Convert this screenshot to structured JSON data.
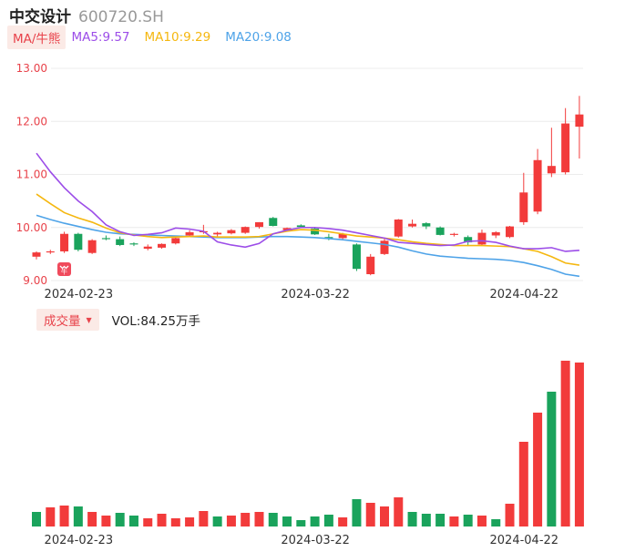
{
  "header": {
    "name": "中交设计",
    "code": "600720.SH"
  },
  "ma_legend": {
    "tag": "MA/牛熊",
    "ma5": "MA5:9.57",
    "ma10": "MA10:9.29",
    "ma20": "MA20:9.08"
  },
  "volume_legend": {
    "tag": "成交量",
    "value": "VOL:84.25万手"
  },
  "colors": {
    "up": "#f23b3b",
    "down": "#1aa35c",
    "ma5": "#9c4de8",
    "ma10": "#f5b70f",
    "ma20": "#4ea3e8",
    "axis_text": "#e8424a",
    "date_text": "#333333"
  },
  "chart_data": [
    {
      "type": "candlestick",
      "title": "",
      "y_ticks": [
        "13.00",
        "12.00",
        "11.00",
        "10.00",
        "9.00"
      ],
      "ylim": [
        9.0,
        13.0
      ],
      "x_tick_labels": [
        {
          "index": 3,
          "label": "2024-02-23"
        },
        {
          "index": 20,
          "label": "2024-03-22"
        },
        {
          "index": 35,
          "label": "2024-04-22"
        }
      ],
      "grid": true,
      "ohlc": [
        [
          9.45,
          9.55,
          9.4,
          9.53
        ],
        [
          9.53,
          9.58,
          9.5,
          9.55
        ],
        [
          9.55,
          9.92,
          9.52,
          9.88
        ],
        [
          9.88,
          9.9,
          9.55,
          9.58
        ],
        [
          9.52,
          9.78,
          9.5,
          9.76
        ],
        [
          9.8,
          9.85,
          9.76,
          9.78
        ],
        [
          9.78,
          9.83,
          9.65,
          9.67
        ],
        [
          9.7,
          9.72,
          9.65,
          9.68
        ],
        [
          9.6,
          9.68,
          9.57,
          9.64
        ],
        [
          9.62,
          9.7,
          9.6,
          9.69
        ],
        [
          9.7,
          9.82,
          9.68,
          9.8
        ],
        [
          9.85,
          9.95,
          9.82,
          9.91
        ],
        [
          9.91,
          10.05,
          9.88,
          9.93
        ],
        [
          9.87,
          9.92,
          9.83,
          9.9
        ],
        [
          9.89,
          9.97,
          9.87,
          9.95
        ],
        [
          9.9,
          10.02,
          9.88,
          10.01
        ],
        [
          10.01,
          10.1,
          9.98,
          10.1
        ],
        [
          10.18,
          10.2,
          10.02,
          10.03
        ],
        [
          9.95,
          10.0,
          9.93,
          9.99
        ],
        [
          10.04,
          10.06,
          10.0,
          10.01
        ],
        [
          9.98,
          10.0,
          9.86,
          9.87
        ],
        [
          9.82,
          9.88,
          9.76,
          9.8
        ],
        [
          9.8,
          9.9,
          9.76,
          9.88
        ],
        [
          9.68,
          9.7,
          9.18,
          9.22
        ],
        [
          9.12,
          9.5,
          9.1,
          9.45
        ],
        [
          9.5,
          9.8,
          9.48,
          9.75
        ],
        [
          9.83,
          10.16,
          9.81,
          10.15
        ],
        [
          10.02,
          10.15,
          10.0,
          10.07
        ],
        [
          10.08,
          10.1,
          9.97,
          10.02
        ],
        [
          10.0,
          10.02,
          9.85,
          9.86
        ],
        [
          9.86,
          9.9,
          9.83,
          9.88
        ],
        [
          9.82,
          9.85,
          9.65,
          9.72
        ],
        [
          9.68,
          9.96,
          9.65,
          9.9
        ],
        [
          9.85,
          9.93,
          9.8,
          9.91
        ],
        [
          9.82,
          10.03,
          9.8,
          10.02
        ],
        [
          10.1,
          11.03,
          10.05,
          10.66
        ],
        [
          10.3,
          11.48,
          10.25,
          11.27
        ],
        [
          11.02,
          11.88,
          10.95,
          11.16
        ],
        [
          11.04,
          12.25,
          11.0,
          11.96
        ],
        [
          11.9,
          12.48,
          11.3,
          12.13
        ]
      ],
      "ma5": [
        11.4,
        11.05,
        10.75,
        10.5,
        10.3,
        10.05,
        9.92,
        9.85,
        9.87,
        9.9,
        9.99,
        9.97,
        9.93,
        9.73,
        9.67,
        9.63,
        9.7,
        9.88,
        9.95,
        10.0,
        10.0,
        9.98,
        9.95,
        9.9,
        9.85,
        9.8,
        9.72,
        9.7,
        9.68,
        9.66,
        9.67,
        9.74,
        9.75,
        9.72,
        9.65,
        9.6,
        9.6,
        9.62,
        9.55,
        9.57
      ],
      "ma10": [
        10.63,
        10.45,
        10.28,
        10.18,
        10.1,
        9.99,
        9.9,
        9.86,
        9.83,
        9.81,
        9.82,
        9.83,
        9.84,
        9.82,
        9.82,
        9.82,
        9.83,
        9.88,
        9.93,
        9.96,
        9.95,
        9.92,
        9.88,
        9.84,
        9.82,
        9.8,
        9.77,
        9.73,
        9.7,
        9.68,
        9.66,
        9.66,
        9.66,
        9.65,
        9.64,
        9.6,
        9.55,
        9.45,
        9.33,
        9.29
      ],
      "ma20": [
        10.23,
        10.15,
        10.08,
        10.02,
        9.96,
        9.91,
        9.88,
        9.87,
        9.86,
        9.85,
        9.84,
        9.83,
        9.82,
        9.81,
        9.81,
        9.81,
        9.82,
        9.83,
        9.83,
        9.82,
        9.81,
        9.79,
        9.77,
        9.74,
        9.71,
        9.68,
        9.63,
        9.56,
        9.5,
        9.46,
        9.44,
        9.42,
        9.41,
        9.4,
        9.38,
        9.34,
        9.28,
        9.21,
        9.12,
        9.08
      ]
    },
    {
      "type": "bar",
      "title": "",
      "series_label": "VOL",
      "x_tick_labels": [
        {
          "index": 3,
          "label": "2024-02-23"
        },
        {
          "index": 20,
          "label": "2024-03-22"
        },
        {
          "index": 35,
          "label": "2024-04-22"
        }
      ],
      "values": [
        16,
        21,
        23,
        22,
        16,
        12,
        15,
        12,
        9,
        14,
        9,
        10,
        17,
        11,
        12,
        15,
        16,
        15,
        11,
        7,
        11,
        13,
        10,
        30,
        26,
        22,
        32,
        16,
        14,
        14,
        11,
        13,
        12,
        8,
        25,
        93,
        125,
        148,
        182,
        180
      ],
      "direction": [
        "down",
        "up",
        "up",
        "down",
        "up",
        "up",
        "down",
        "down",
        "up",
        "up",
        "up",
        "up",
        "up",
        "down",
        "up",
        "up",
        "up",
        "down",
        "down",
        "down",
        "down",
        "down",
        "up",
        "down",
        "up",
        "up",
        "up",
        "down",
        "down",
        "down",
        "up",
        "down",
        "up",
        "down",
        "up",
        "up",
        "up",
        "down",
        "up",
        "up"
      ]
    }
  ]
}
